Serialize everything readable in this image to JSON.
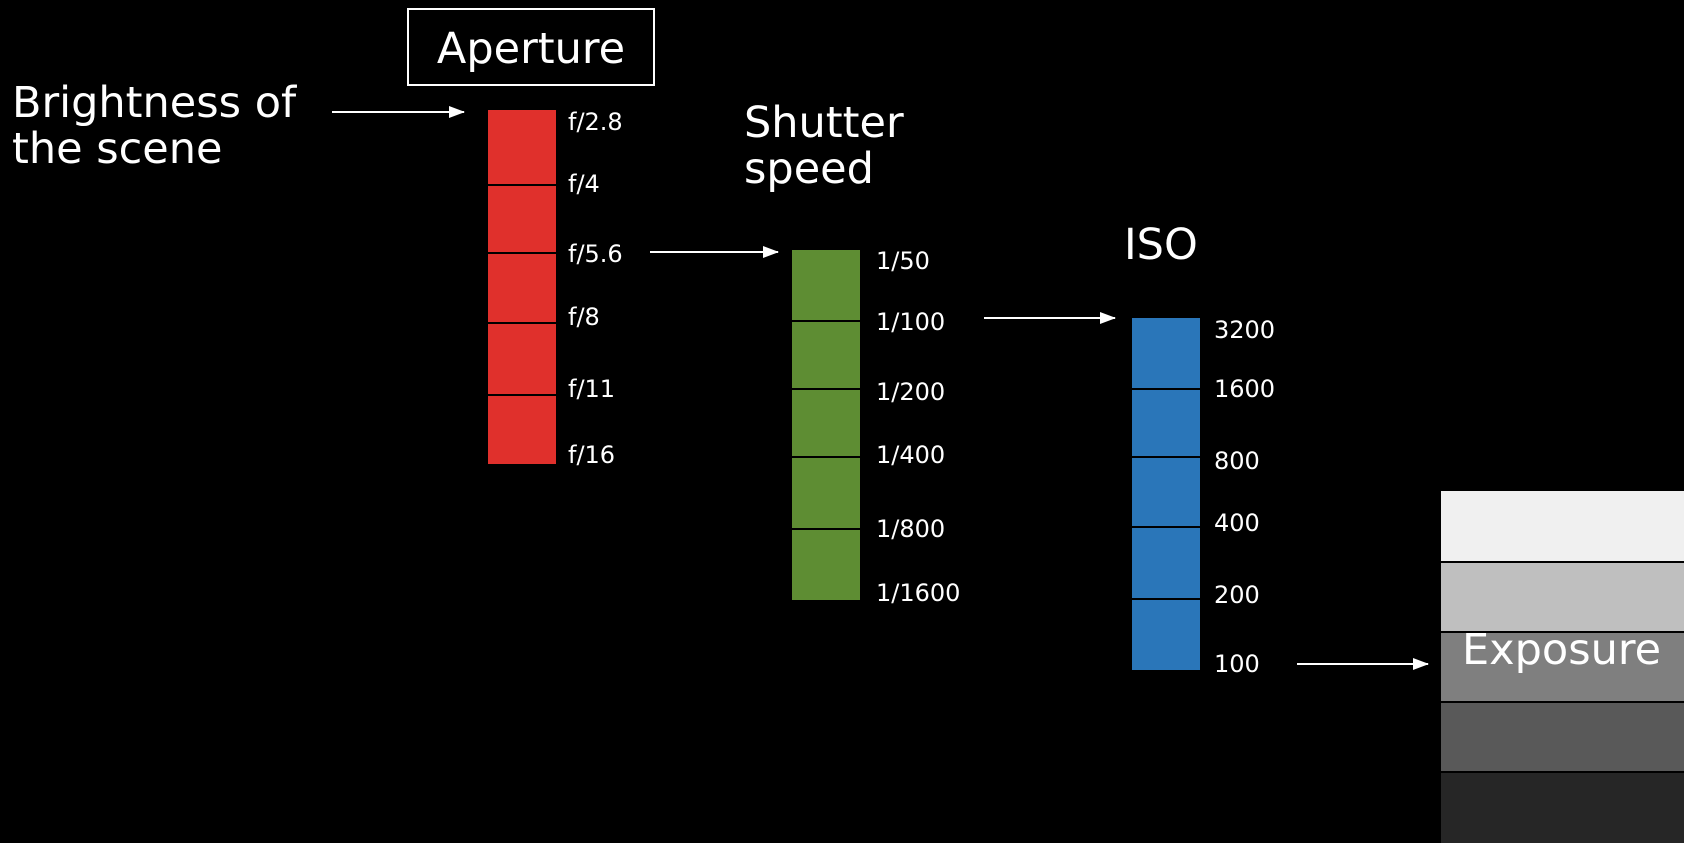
{
  "brightness": {
    "line1": "Brightness of",
    "line2": "the scene"
  },
  "aperture": {
    "title": "Aperture",
    "color": "#e0302c",
    "ticks": [
      "f/2.8",
      "f/4",
      "f/5.6",
      "f/8",
      "f/11",
      "f/16"
    ]
  },
  "shutter": {
    "title_line1": "Shutter",
    "title_line2": "speed",
    "color": "#5e8d33",
    "ticks": [
      "1/50",
      "1/100",
      "1/200",
      "1/400",
      "1/800",
      "1/1600"
    ]
  },
  "iso": {
    "title": "ISO",
    "color": "#2a76b9",
    "ticks": [
      "3200",
      "1600",
      "800",
      "400",
      "200",
      "100"
    ]
  },
  "exposure": {
    "label": "Exposure",
    "shades": [
      "#f0f0f0",
      "#bfbfbf",
      "#7f7f7f",
      "#595959",
      "#262626"
    ]
  }
}
